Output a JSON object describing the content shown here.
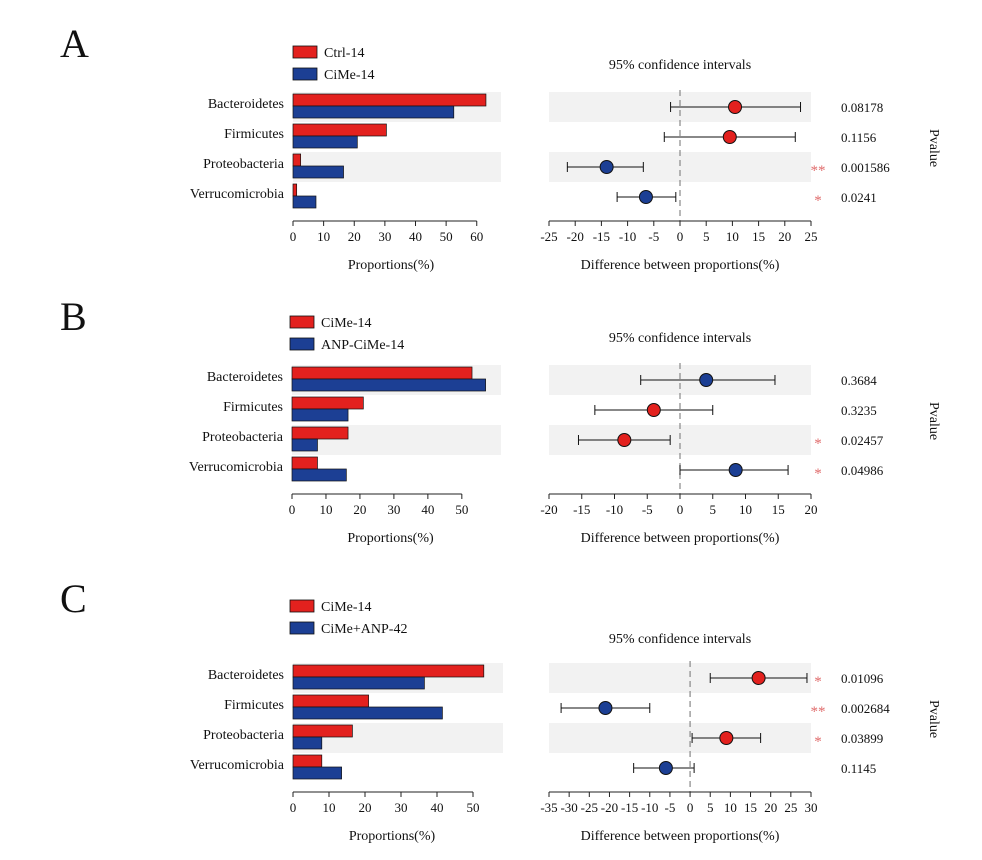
{
  "colors": {
    "group1": "#e3211e",
    "group2": "#1c3f94",
    "stripe": "#f2f2f2",
    "signif": "#e06b6b",
    "axis": "#222222"
  },
  "chart_data": [
    {
      "type": "bar",
      "panel_label": "A",
      "legend": [
        "Ctrl-14",
        "CiMe-14"
      ],
      "categories": [
        "Bacteroidetes",
        "Firmicutes",
        "Proteobacteria",
        "Verrucomicrobia"
      ],
      "series": [
        {
          "name": "Ctrl-14",
          "values": [
            63,
            30.5,
            2.5,
            1.2
          ]
        },
        {
          "name": "CiMe-14",
          "values": [
            52.5,
            21,
            16.5,
            7.5
          ]
        }
      ],
      "bar_xlabel": "Proportions(%)",
      "bar_xlim": [
        0,
        64
      ],
      "bar_ticks": [
        0,
        10,
        20,
        30,
        40,
        50,
        60
      ],
      "ci_title": "95% confidence intervals",
      "ci_xlabel": "Difference between proportions(%)",
      "ci_xlim": [
        -25,
        25
      ],
      "ci_ticks": [
        -25,
        -20,
        -15,
        -10,
        -5,
        0,
        5,
        10,
        15,
        20,
        25
      ],
      "ci": [
        {
          "estimate": 10.5,
          "lower": -1.8,
          "upper": 23,
          "higher_in": "Ctrl-14"
        },
        {
          "estimate": 9.5,
          "lower": -3,
          "upper": 22,
          "higher_in": "Ctrl-14"
        },
        {
          "estimate": -14,
          "lower": -21.5,
          "upper": -7,
          "higher_in": "CiMe-14"
        },
        {
          "estimate": -6.5,
          "lower": -12,
          "upper": -0.8,
          "higher_in": "CiMe-14"
        }
      ],
      "signif": [
        "",
        "",
        "**",
        "*"
      ],
      "pvalues": [
        "0.08178",
        "0.1156",
        "0.001586",
        "0.0241"
      ],
      "pvalue_label": "Pvalue"
    },
    {
      "type": "bar",
      "panel_label": "B",
      "legend": [
        "CiMe-14",
        "ANP-CiMe-14"
      ],
      "categories": [
        "Bacteroidetes",
        "Firmicutes",
        "Proteobacteria",
        "Verrucomicrobia"
      ],
      "series": [
        {
          "name": "CiMe-14",
          "values": [
            53,
            21,
            16.5,
            7.5
          ]
        },
        {
          "name": "ANP-CiMe-14",
          "values": [
            57,
            16.5,
            7.5,
            16
          ]
        }
      ],
      "bar_xlabel": "Proportions(%)",
      "bar_xlim": [
        0,
        58
      ],
      "bar_ticks": [
        0,
        10,
        20,
        30,
        40,
        50
      ],
      "ci_title": "95% confidence intervals",
      "ci_xlabel": "Difference between proportions(%)",
      "ci_xlim": [
        -20,
        20
      ],
      "ci_ticks": [
        -20,
        -15,
        -10,
        -5,
        0,
        5,
        10,
        15,
        20
      ],
      "ci": [
        {
          "estimate": 4,
          "lower": -6,
          "upper": 14.5,
          "higher_in": "ANP-CiMe-14"
        },
        {
          "estimate": -4,
          "lower": -13,
          "upper": 5,
          "higher_in": "CiMe-14"
        },
        {
          "estimate": -8.5,
          "lower": -15.5,
          "upper": -1.5,
          "higher_in": "CiMe-14"
        },
        {
          "estimate": 8.5,
          "lower": 0,
          "upper": 16.5,
          "higher_in": "ANP-CiMe-14"
        }
      ],
      "signif": [
        "",
        "",
        "*",
        "*"
      ],
      "pvalues": [
        "0.3684",
        "0.3235",
        "0.02457",
        "0.04986"
      ],
      "pvalue_label": "Pvalue"
    },
    {
      "type": "bar",
      "panel_label": "C",
      "legend": [
        "CiMe-14",
        "CiMe+ANP-42"
      ],
      "categories": [
        "Bacteroidetes",
        "Firmicutes",
        "Proteobacteria",
        "Verrucomicrobia"
      ],
      "series": [
        {
          "name": "CiMe-14",
          "values": [
            53,
            21,
            16.5,
            8
          ]
        },
        {
          "name": "CiMe+ANP-42",
          "values": [
            36.5,
            41.5,
            8,
            13.5
          ]
        }
      ],
      "bar_xlabel": "Proportions(%)",
      "bar_xlim": [
        0,
        55
      ],
      "bar_ticks": [
        0,
        10,
        20,
        30,
        40,
        50
      ],
      "ci_title": "95% confidence intervals",
      "ci_xlabel": "Difference between proportions(%)",
      "ci_xlim": [
        -35,
        30
      ],
      "ci_ticks": [
        -35,
        -30,
        -25,
        -20,
        -15,
        -10,
        -5,
        0,
        5,
        10,
        15,
        20,
        25,
        30
      ],
      "ci": [
        {
          "estimate": 17,
          "lower": 5,
          "upper": 29,
          "higher_in": "CiMe-14"
        },
        {
          "estimate": -21,
          "lower": -32,
          "upper": -10,
          "higher_in": "CiMe+ANP-42"
        },
        {
          "estimate": 9,
          "lower": 0.5,
          "upper": 17.5,
          "higher_in": "CiMe-14"
        },
        {
          "estimate": -6,
          "lower": -14,
          "upper": 1,
          "higher_in": "CiMe+ANP-42"
        }
      ],
      "signif": [
        "*",
        "**",
        "*",
        ""
      ],
      "pvalues": [
        "0.01096",
        "0.002684",
        "0.03899",
        "0.1145"
      ],
      "pvalue_label": "Pvalue"
    }
  ]
}
